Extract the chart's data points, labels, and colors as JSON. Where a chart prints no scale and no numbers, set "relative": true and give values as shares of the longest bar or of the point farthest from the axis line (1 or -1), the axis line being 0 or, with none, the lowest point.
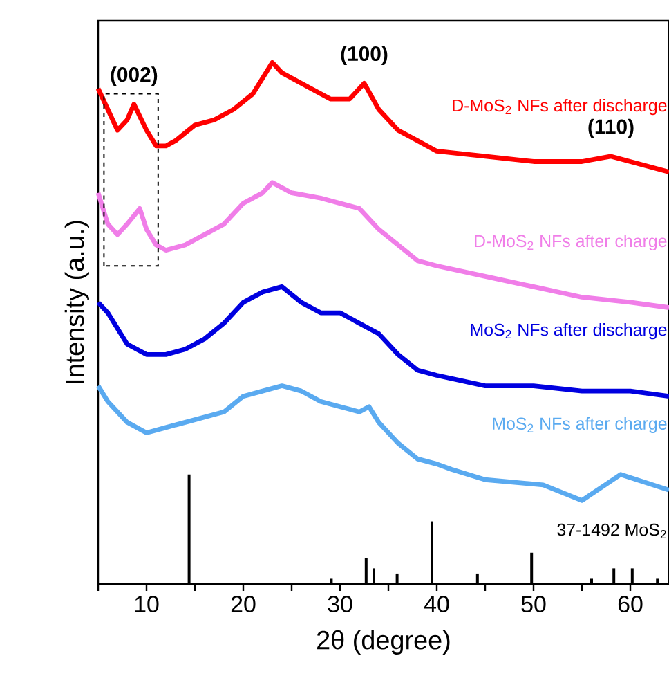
{
  "chart_data": {
    "type": "line",
    "relative": true,
    "xlabel": "2θ (degree)",
    "ylabel": "Intensity (a.u.)",
    "xlim": [
      5,
      64
    ],
    "xticks": [
      {
        "value": 5,
        "label": null
      },
      10,
      {
        "value": 15,
        "label": null
      },
      20,
      {
        "value": 25,
        "label": null
      },
      30,
      {
        "value": 35,
        "label": null
      },
      40,
      {
        "value": 45,
        "label": null
      },
      50,
      {
        "value": 55,
        "label": null
      },
      60
    ],
    "tick_labels": "x",
    "grid": false,
    "marker": "none",
    "line_style": "solid",
    "annotations": [
      {
        "text": "**(002)**",
        "x": 8.7,
        "y": 0.92
      },
      {
        "text": "**(100)**",
        "x": 32.5,
        "y": 0.96
      },
      {
        "text": "**(110)**",
        "x": 58,
        "y": 0.82
      }
    ],
    "series": [
      {
        "name": "D-MoS$_{2}$ NFs after discharge",
        "color": "#ff0000",
        "x": [
          5,
          6,
          7,
          8,
          8.7,
          10,
          11,
          12,
          13,
          15,
          17,
          19,
          21,
          23,
          24,
          25,
          27,
          29,
          31,
          32.5,
          34,
          36,
          38,
          40,
          45,
          50,
          55,
          58,
          60,
          62,
          64
        ],
        "values": [
          0.95,
          0.91,
          0.87,
          0.89,
          0.92,
          0.87,
          0.84,
          0.84,
          0.85,
          0.88,
          0.89,
          0.91,
          0.94,
          1.0,
          0.98,
          0.97,
          0.95,
          0.93,
          0.93,
          0.96,
          0.91,
          0.87,
          0.85,
          0.83,
          0.82,
          0.81,
          0.81,
          0.82,
          0.81,
          0.8,
          0.79
        ]
      },
      {
        "name": "D-MoS$_{2}$ NFs after charge",
        "color": "#f07ee8",
        "x": [
          5,
          6,
          7,
          8,
          9.3,
          10,
          11,
          12,
          14,
          16,
          18,
          20,
          22,
          23,
          25,
          28,
          30,
          32,
          34,
          36,
          38,
          40,
          45,
          50,
          55,
          60,
          64
        ],
        "values": [
          0.75,
          0.69,
          0.67,
          0.69,
          0.72,
          0.68,
          0.65,
          0.64,
          0.65,
          0.67,
          0.69,
          0.73,
          0.75,
          0.77,
          0.75,
          0.74,
          0.73,
          0.72,
          0.68,
          0.65,
          0.62,
          0.61,
          0.59,
          0.57,
          0.55,
          0.54,
          0.53
        ]
      },
      {
        "name": "MoS$_{2}$ NFs after discharge",
        "color": "#0000e0",
        "x": [
          5,
          6,
          8,
          10,
          12,
          14,
          16,
          18,
          20,
          22,
          24,
          26,
          28,
          30,
          32,
          34,
          36,
          38,
          40,
          45,
          50,
          55,
          60,
          64
        ],
        "values": [
          0.54,
          0.52,
          0.46,
          0.44,
          0.44,
          0.45,
          0.47,
          0.5,
          0.54,
          0.56,
          0.57,
          0.54,
          0.52,
          0.52,
          0.5,
          0.48,
          0.44,
          0.41,
          0.4,
          0.38,
          0.38,
          0.37,
          0.37,
          0.36
        ]
      },
      {
        "name": "MoS$_{2}$ NFs after charge",
        "color": "#5aaaf0",
        "x": [
          5,
          6,
          8,
          10,
          12,
          14,
          16,
          18,
          20,
          22,
          24,
          26,
          28,
          30,
          32,
          33,
          34,
          36,
          38,
          40,
          41.5,
          45,
          51,
          55,
          59,
          64
        ],
        "values": [
          0.38,
          0.35,
          0.31,
          0.29,
          0.3,
          0.31,
          0.32,
          0.33,
          0.36,
          0.37,
          0.38,
          0.37,
          0.35,
          0.34,
          0.33,
          0.34,
          0.31,
          0.27,
          0.24,
          0.23,
          0.22,
          0.2,
          0.19,
          0.16,
          0.21,
          0.18
        ]
      },
      {
        "name": "37-1492 MoS$_{2}$",
        "type": "bar",
        "color": "#000000",
        "x": [
          14.4,
          29.1,
          32.7,
          33.5,
          35.9,
          39.5,
          44.2,
          49.8,
          56,
          58.3,
          60.2,
          62.8
        ],
        "values": [
          0.21,
          0.01,
          0.05,
          0.03,
          0.02,
          0.12,
          0.02,
          0.06,
          0.01,
          0.03,
          0.03,
          0.01
        ]
      }
    ]
  }
}
